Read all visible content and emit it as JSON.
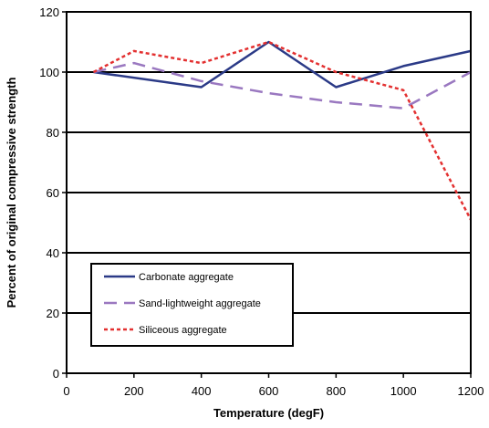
{
  "chart_data": {
    "type": "line",
    "title": "",
    "xlabel": "Temperature (degF)",
    "ylabel": "Percent of original compressive strength",
    "xlim": [
      0,
      1200
    ],
    "ylim": [
      0,
      120
    ],
    "xticks": [
      0,
      200,
      400,
      600,
      800,
      1000,
      1200
    ],
    "yticks": [
      0,
      20,
      40,
      60,
      80,
      100,
      120
    ],
    "grid": "horizontal",
    "legend_position": "bottom-left",
    "series": [
      {
        "name": "Carbonate aggregate",
        "color": "#2b3a87",
        "dash": "solid",
        "x": [
          80,
          400,
          600,
          800,
          1000,
          1200
        ],
        "y": [
          100,
          95,
          110,
          95,
          102,
          107
        ]
      },
      {
        "name": "Sand-lightweight aggregate",
        "color": "#9a78c0",
        "dash": "long-dash",
        "x": [
          80,
          200,
          400,
          600,
          800,
          1000,
          1200
        ],
        "y": [
          100,
          103,
          97,
          93,
          90,
          88,
          100
        ]
      },
      {
        "name": "Siliceous aggregate",
        "color": "#e33030",
        "dash": "short-dash",
        "x": [
          80,
          200,
          400,
          600,
          800,
          1000,
          1200
        ],
        "y": [
          100,
          107,
          103,
          110,
          100,
          94,
          51
        ]
      }
    ]
  }
}
